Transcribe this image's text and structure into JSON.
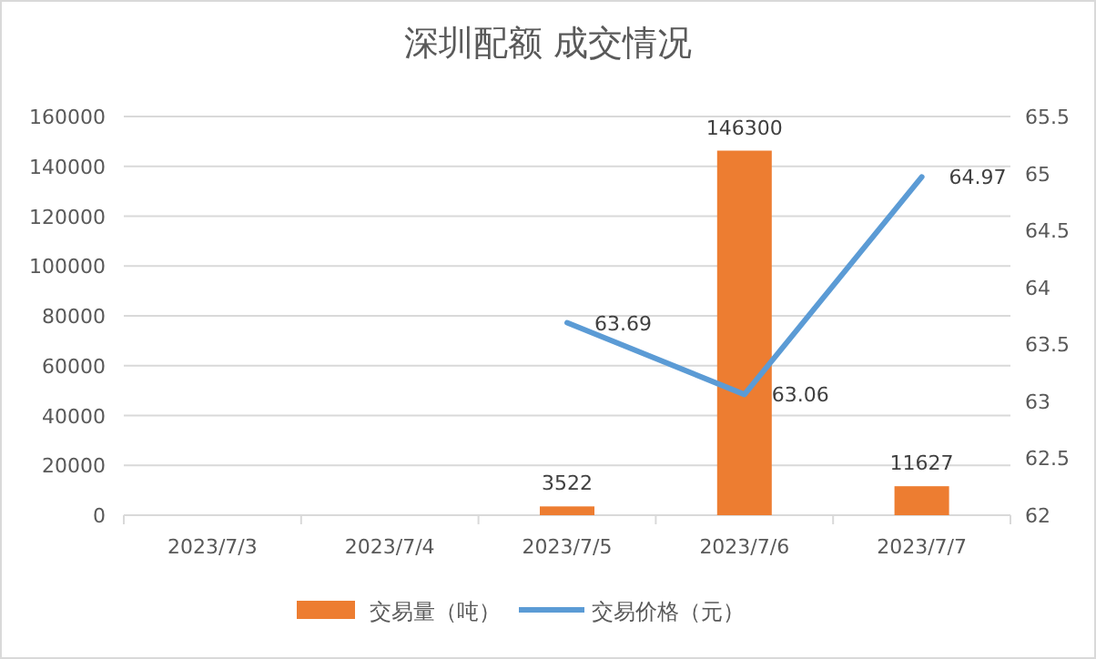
{
  "chart_data": {
    "type": "bar",
    "title": "深圳配额 成交情况",
    "categories": [
      "2023/7/3",
      "2023/7/4",
      "2023/7/5",
      "2023/7/6",
      "2023/7/7"
    ],
    "series": [
      {
        "name": "交易量（吨）",
        "color": "#ed7d31",
        "values": [
          null,
          null,
          3522,
          146300,
          11627
        ]
      },
      {
        "name": "交易价格（元）",
        "type": "line",
        "axis": "y2",
        "color": "#5b9bd5",
        "values": [
          null,
          null,
          63.69,
          63.06,
          64.97
        ]
      }
    ],
    "ylim": [
      0,
      160000
    ],
    "yticks": [
      0,
      20000,
      40000,
      60000,
      80000,
      100000,
      120000,
      140000,
      160000
    ],
    "y2lim": [
      62,
      65.5
    ],
    "y2ticks": [
      62,
      62.5,
      63,
      63.5,
      64,
      64.5,
      65,
      65.5
    ],
    "grid": "y",
    "legend": "bottom",
    "data_labels": true,
    "marker": "none",
    "line_style": "solid"
  }
}
